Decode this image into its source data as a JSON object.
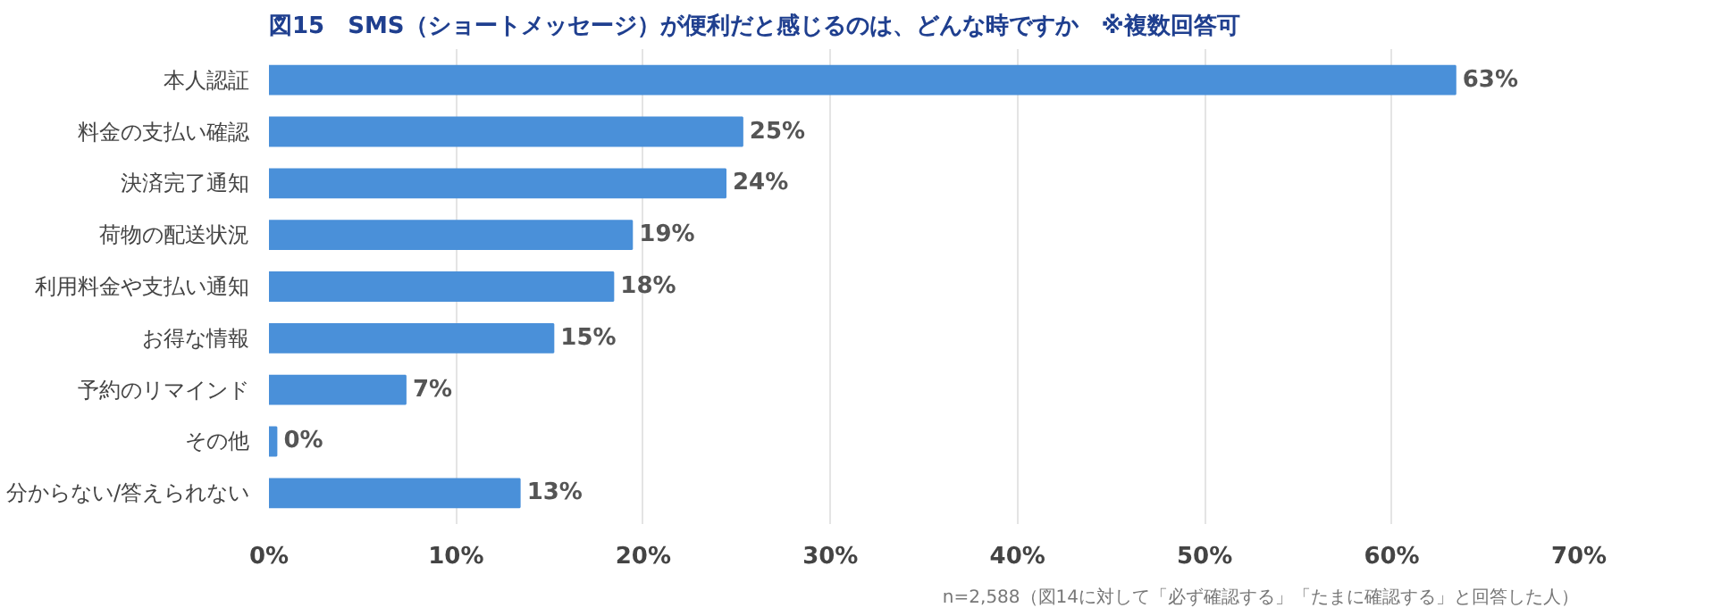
{
  "chart_data": {
    "type": "bar",
    "orientation": "horizontal",
    "title": "図15　SMS（ショートメッセージ）が便利だと感じるのは、どんな時ですか　※複数回答可",
    "categories": [
      "本人認証",
      "料金の支払い確認",
      "決済完了通知",
      "荷物の配送状況",
      "利用料金や支払い通知",
      "お得な情報",
      "予約のリマインド",
      "その他",
      "分からない/答えられない"
    ],
    "values": [
      63.4,
      25.3,
      24.4,
      19.4,
      18.4,
      15.2,
      7.3,
      0.4,
      13.4
    ],
    "value_labels": [
      "63%",
      "25%",
      "24%",
      "19%",
      "18%",
      "15%",
      "7%",
      "0%",
      "13%"
    ],
    "color": "#4a90d9",
    "xlim": [
      0,
      70
    ],
    "xticks": [
      {
        "value": 0,
        "label": "0%"
      },
      {
        "value": 10,
        "label": "10%"
      },
      {
        "value": 20,
        "label": "20%"
      },
      {
        "value": 30,
        "label": "30%"
      },
      {
        "value": 40,
        "label": "40%"
      },
      {
        "value": 50,
        "label": "50%"
      },
      {
        "value": 60,
        "label": "60%"
      },
      {
        "value": 70,
        "label": "70%"
      }
    ],
    "grid": "x",
    "annotations": [
      "n=2,588（図14に対して「必ず確認する」「たまに確認する」と回答した人）"
    ]
  }
}
